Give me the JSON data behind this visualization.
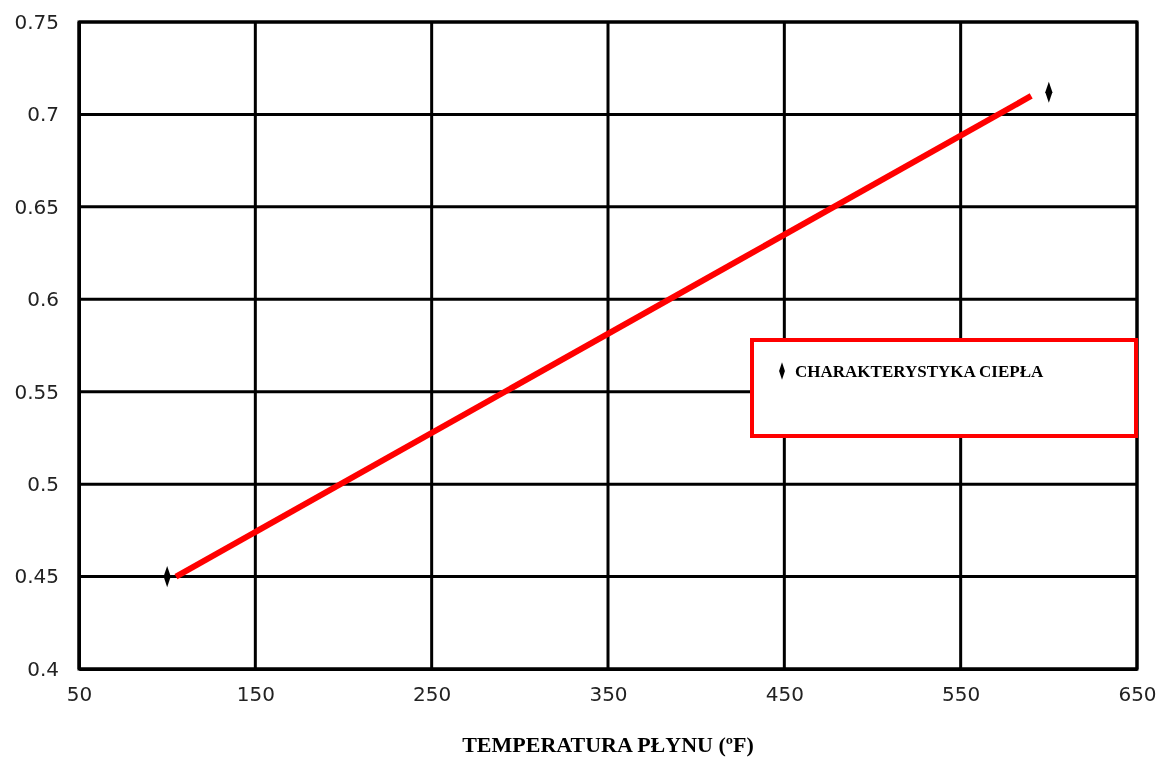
{
  "chart_data": {
    "type": "scatter",
    "xlabel": "TEMPERATURA PŁYNU (ºF)",
    "xlim": [
      50,
      650
    ],
    "xticks": [
      50,
      150,
      250,
      350,
      450,
      550,
      650
    ],
    "ylim": [
      0.4,
      0.75
    ],
    "yticks": [
      0.4,
      0.45,
      0.5,
      0.55,
      0.6,
      0.65,
      0.7,
      0.75
    ],
    "grid": true,
    "legend": "right",
    "marker": "diamond",
    "series": [
      {
        "name": "CHARAKTERYSTYKA CIEPŁA",
        "color": "#000000",
        "x": [
          100,
          600
        ],
        "values": [
          0.45,
          0.712
        ]
      },
      {
        "type": "line",
        "color": "#ff0000",
        "x": [
          105,
          590
        ],
        "values": [
          0.45,
          0.71
        ],
        "marker": "none",
        "line_style": "solid"
      }
    ]
  }
}
